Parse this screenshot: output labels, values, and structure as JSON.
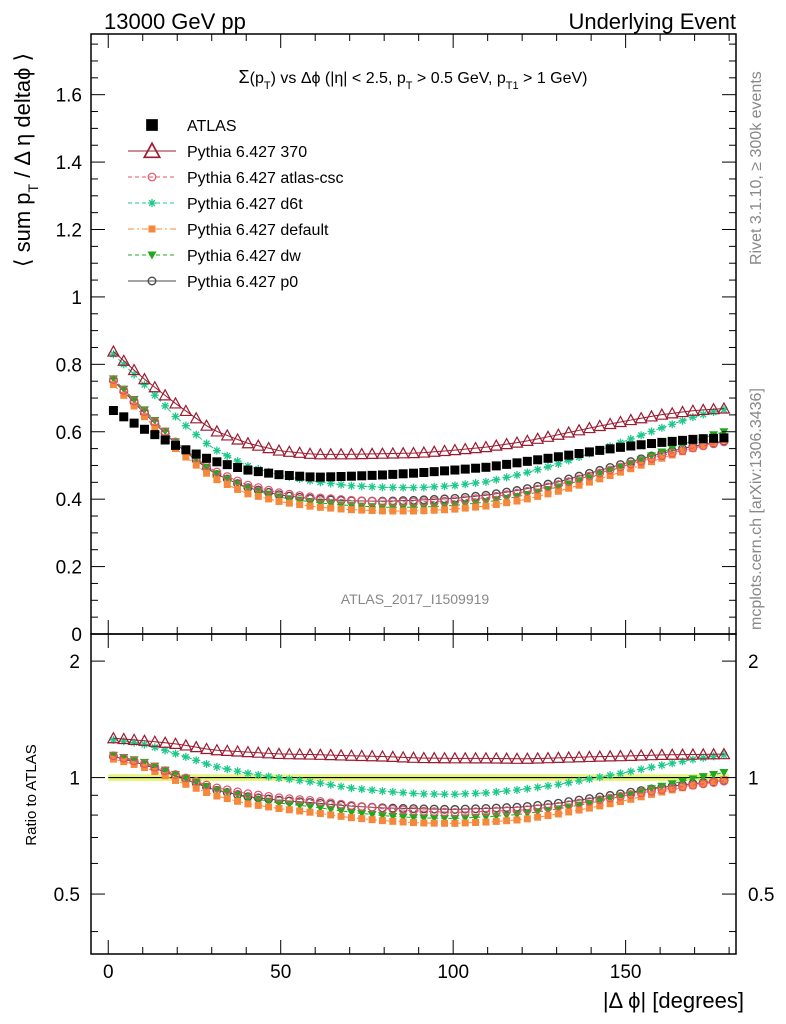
{
  "header": {
    "left": "13000 GeV pp",
    "right": "Underlying Event"
  },
  "plot_title": {
    "sigma": "Σ",
    "p1": "(p",
    "sub_t1": "T",
    "p2": ") vs Δϕ (|η| < 2.5, p",
    "sub_t2": "T",
    "p3": " > 0.5 GeV, p",
    "sub_t3": "T1",
    "p4": " > 1 GeV)"
  },
  "y_label": {
    "a": "⟨ sum p",
    "sub": "T",
    "b": " / Δ η deltaϕ ⟩"
  },
  "ratio_label": "Ratio to ATLAS",
  "x_label": "|Δ ϕ| [degrees]",
  "watermark": "ATLAS_2017_I1509919",
  "side_top": "Rivet 3.1.10, ≥ 300k events",
  "side_bottom": "mcplots.cern.ch [arXiv:1306.3436]",
  "colors": {
    "atlas": "#000000",
    "p370": "#9b1b30",
    "atlascsc": "#e8506a",
    "d6t": "#1dc98a",
    "default": "#f5883a",
    "dw": "#22a81e",
    "p0": "#4a4a4a",
    "band": "#e6f57a"
  },
  "chart_data": {
    "type": "scatter",
    "xlim": [
      -5,
      182
    ],
    "ylim": [
      0,
      1.78
    ],
    "ratio_ylim": [
      0.35,
      2.35
    ],
    "ratio_log": true,
    "x_ticks": [
      "0",
      "50",
      "100",
      "150"
    ],
    "y_ticks": [
      "0",
      "0.2",
      "0.4",
      "0.6",
      "0.8",
      "1",
      "1.2",
      "1.4",
      "1.6"
    ],
    "ratio_ticks": [
      "0.5",
      "1",
      "2"
    ],
    "legend_position": "top-left",
    "series": [
      {
        "key": "atlas",
        "name": "ATLAS",
        "marker": "square",
        "anchors": [
          [
            1.5,
            0.663
          ],
          [
            10,
            0.61
          ],
          [
            20,
            0.557
          ],
          [
            30,
            0.515
          ],
          [
            40,
            0.487
          ],
          [
            50,
            0.472
          ],
          [
            60,
            0.465
          ],
          [
            70,
            0.468
          ],
          [
            80,
            0.472
          ],
          [
            90,
            0.478
          ],
          [
            100,
            0.486
          ],
          [
            110,
            0.495
          ],
          [
            120,
            0.51
          ],
          [
            130,
            0.525
          ],
          [
            140,
            0.541
          ],
          [
            150,
            0.556
          ],
          [
            160,
            0.568
          ],
          [
            170,
            0.578
          ],
          [
            178.5,
            0.582
          ]
        ]
      },
      {
        "key": "p370",
        "name": "Pythia 6.427 370",
        "marker": "triangle-open",
        "anchors": [
          [
            1.5,
            0.838
          ],
          [
            10,
            0.76
          ],
          [
            20,
            0.68
          ],
          [
            30,
            0.607
          ],
          [
            40,
            0.567
          ],
          [
            50,
            0.543
          ],
          [
            60,
            0.533
          ],
          [
            70,
            0.533
          ],
          [
            80,
            0.535
          ],
          [
            90,
            0.537
          ],
          [
            100,
            0.545
          ],
          [
            110,
            0.555
          ],
          [
            120,
            0.57
          ],
          [
            130,
            0.59
          ],
          [
            140,
            0.612
          ],
          [
            150,
            0.632
          ],
          [
            160,
            0.65
          ],
          [
            170,
            0.663
          ],
          [
            178.5,
            0.669
          ]
        ]
      },
      {
        "key": "atlascsc",
        "name": "Pythia 6.427 atlas-csc",
        "marker": "circle-open",
        "anchors": [
          [
            1.5,
            0.755
          ],
          [
            10,
            0.665
          ],
          [
            20,
            0.565
          ],
          [
            30,
            0.487
          ],
          [
            40,
            0.443
          ],
          [
            50,
            0.418
          ],
          [
            60,
            0.405
          ],
          [
            70,
            0.397
          ],
          [
            80,
            0.392
          ],
          [
            90,
            0.392
          ],
          [
            100,
            0.395
          ],
          [
            110,
            0.405
          ],
          [
            120,
            0.42
          ],
          [
            130,
            0.442
          ],
          [
            140,
            0.47
          ],
          [
            150,
            0.5
          ],
          [
            160,
            0.528
          ],
          [
            170,
            0.553
          ],
          [
            178.5,
            0.57
          ]
        ]
      },
      {
        "key": "d6t",
        "name": "Pythia 6.427 d6t",
        "marker": "star",
        "anchors": [
          [
            1.5,
            0.83
          ],
          [
            10,
            0.745
          ],
          [
            20,
            0.64
          ],
          [
            30,
            0.552
          ],
          [
            40,
            0.5
          ],
          [
            50,
            0.47
          ],
          [
            60,
            0.452
          ],
          [
            70,
            0.44
          ],
          [
            80,
            0.435
          ],
          [
            90,
            0.434
          ],
          [
            100,
            0.44
          ],
          [
            110,
            0.452
          ],
          [
            120,
            0.475
          ],
          [
            130,
            0.503
          ],
          [
            140,
            0.537
          ],
          [
            150,
            0.573
          ],
          [
            160,
            0.61
          ],
          [
            170,
            0.645
          ],
          [
            178.5,
            0.666
          ]
        ]
      },
      {
        "key": "default",
        "name": "Pythia 6.427 default",
        "marker": "square-small",
        "anchors": [
          [
            1.5,
            0.74
          ],
          [
            10,
            0.65
          ],
          [
            20,
            0.545
          ],
          [
            30,
            0.465
          ],
          [
            40,
            0.417
          ],
          [
            50,
            0.392
          ],
          [
            60,
            0.377
          ],
          [
            70,
            0.369
          ],
          [
            80,
            0.365
          ],
          [
            90,
            0.365
          ],
          [
            100,
            0.37
          ],
          [
            110,
            0.38
          ],
          [
            120,
            0.397
          ],
          [
            130,
            0.422
          ],
          [
            140,
            0.452
          ],
          [
            150,
            0.485
          ],
          [
            160,
            0.52
          ],
          [
            170,
            0.552
          ],
          [
            178.5,
            0.575
          ]
        ]
      },
      {
        "key": "dw",
        "name": "Pythia 6.427 dw",
        "marker": "triangle-down",
        "anchors": [
          [
            1.5,
            0.757
          ],
          [
            10,
            0.67
          ],
          [
            20,
            0.565
          ],
          [
            30,
            0.482
          ],
          [
            40,
            0.433
          ],
          [
            50,
            0.405
          ],
          [
            60,
            0.39
          ],
          [
            70,
            0.381
          ],
          [
            80,
            0.376
          ],
          [
            90,
            0.376
          ],
          [
            100,
            0.381
          ],
          [
            110,
            0.392
          ],
          [
            120,
            0.41
          ],
          [
            130,
            0.435
          ],
          [
            140,
            0.465
          ],
          [
            150,
            0.5
          ],
          [
            160,
            0.538
          ],
          [
            170,
            0.575
          ],
          [
            178.5,
            0.6
          ]
        ]
      },
      {
        "key": "p0",
        "name": "Pythia 6.427 p0",
        "marker": "circle-open-small",
        "anchors": [
          [
            1.5,
            0.752
          ],
          [
            10,
            0.66
          ],
          [
            20,
            0.56
          ],
          [
            30,
            0.48
          ],
          [
            40,
            0.435
          ],
          [
            50,
            0.412
          ],
          [
            60,
            0.4
          ],
          [
            70,
            0.395
          ],
          [
            80,
            0.394
          ],
          [
            90,
            0.397
          ],
          [
            100,
            0.402
          ],
          [
            110,
            0.412
          ],
          [
            120,
            0.428
          ],
          [
            130,
            0.45
          ],
          [
            140,
            0.478
          ],
          [
            150,
            0.507
          ],
          [
            160,
            0.535
          ],
          [
            170,
            0.558
          ],
          [
            178.5,
            0.572
          ]
        ]
      }
    ]
  }
}
